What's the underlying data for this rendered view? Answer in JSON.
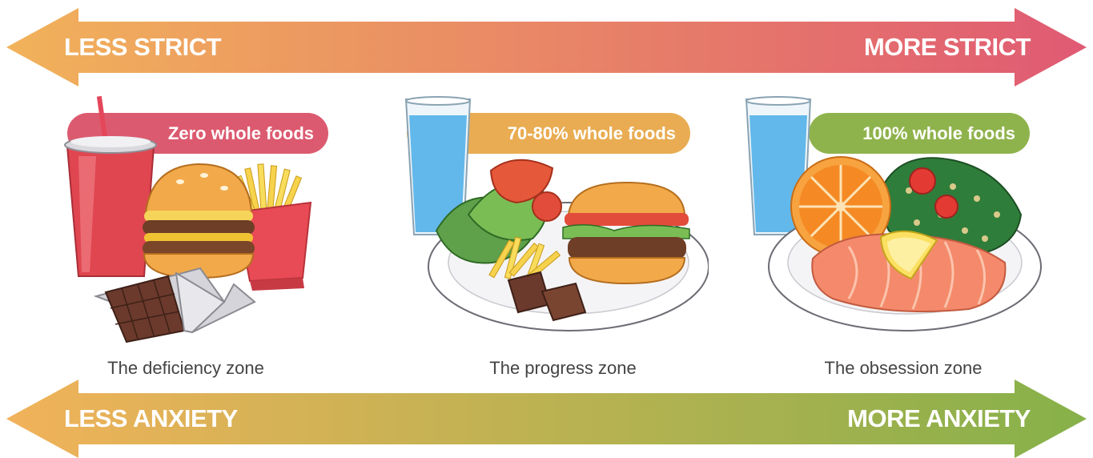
{
  "top_arrow": {
    "left_label": "LESS STRICT",
    "right_label": "MORE STRICT",
    "gradient": [
      "#f1b25a",
      "#e05a73"
    ]
  },
  "bottom_arrow": {
    "left_label": "LESS ANXIETY",
    "right_label": "MORE ANXIETY",
    "gradient": [
      "#f1b25a",
      "#86b14a"
    ]
  },
  "zones": [
    {
      "badge": "Zero whole foods",
      "label": "The deficiency zone",
      "color": "#dc5a6f",
      "icons": [
        "soda-cup-icon",
        "hamburger-icon",
        "fries-icon",
        "chocolate-bar-icon"
      ]
    },
    {
      "badge": "70-80% whole foods",
      "label": "The progress zone",
      "color": "#e9ac52",
      "icons": [
        "water-glass-icon",
        "salad-plate-icon",
        "hamburger-icon",
        "fries-icon",
        "chocolate-icon"
      ]
    },
    {
      "badge": "100% whole foods",
      "label": "The obsession zone",
      "color": "#8fb34c",
      "icons": [
        "water-glass-icon",
        "orange-slice-icon",
        "salad-icon",
        "salmon-fillet-icon",
        "lemon-wedge-icon"
      ]
    }
  ]
}
